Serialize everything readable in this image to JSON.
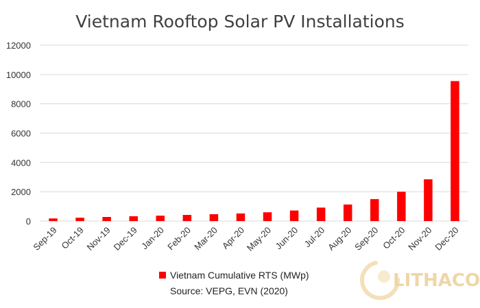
{
  "chart_data": {
    "type": "bar",
    "title": "Vietnam Rooftop Solar PV Installations",
    "categories": [
      "Sep-19",
      "Oct-19",
      "Nov-19",
      "Dec-19",
      "Jan-20",
      "Feb-20",
      "Mar-20",
      "Apr-20",
      "May-20",
      "Jun-20",
      "Jul-20",
      "Aug-20",
      "Sep-20",
      "Oct-20",
      "Nov-20",
      "Dec-20"
    ],
    "series": [
      {
        "name": "Vietnam Cumulative RTS (MWp)",
        "color": "#ff0000",
        "values": [
          180,
          230,
          280,
          330,
          370,
          420,
          470,
          520,
          600,
          720,
          920,
          1130,
          1500,
          2000,
          2850,
          9550
        ]
      }
    ],
    "ylim": [
      0,
      12000
    ],
    "yticks": [
      0,
      2000,
      4000,
      6000,
      8000,
      10000,
      12000
    ],
    "xlabel": "",
    "ylabel": "",
    "grid": true,
    "legend_position": "bottom"
  },
  "source_text": "Source: VEPG, EVN (2020)",
  "watermark": {
    "text": "LITHACO",
    "color": "#e9c98a"
  }
}
